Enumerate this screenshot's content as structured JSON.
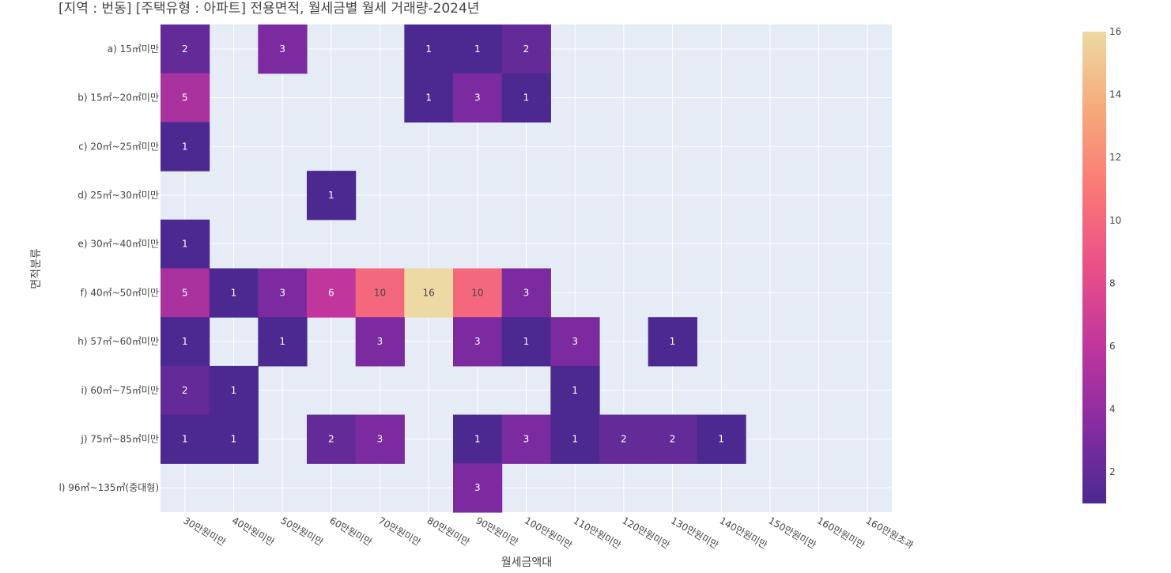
{
  "chart_data": {
    "type": "heatmap",
    "title": "[지역 : 번동] [주택유형 : 아파트] 전용면적, 월세금별 월세 거래량-2024년",
    "xlabel": "월세금액대",
    "ylabel": "면적분류",
    "x_categories": [
      "30만원미만",
      "40만원미만",
      "50만원미만",
      "60만원미만",
      "70만원미만",
      "80만원미만",
      "90만원미만",
      "100만원미만",
      "110만원미만",
      "120만원미만",
      "130만원미만",
      "140만원미만",
      "150만원미만",
      "160만원미만",
      "160만원초과"
    ],
    "y_categories": [
      "a) 15㎡미만",
      "b) 15㎡~20㎡미만",
      "c) 20㎡~25㎡미만",
      "d) 25㎡~30㎡미만",
      "e) 30㎡~40㎡미만",
      "f) 40㎡~50㎡미만",
      "h) 57㎡~60㎡미만",
      "i) 60㎡~75㎡미만",
      "j) 75㎡~85㎡미만",
      "l) 96㎡~135㎡(중대형)"
    ],
    "values": [
      [
        2,
        null,
        3,
        null,
        null,
        1,
        1,
        2,
        null,
        null,
        null,
        null,
        null,
        null,
        null
      ],
      [
        5,
        null,
        null,
        null,
        null,
        1,
        3,
        1,
        null,
        null,
        null,
        null,
        null,
        null,
        null
      ],
      [
        1,
        null,
        null,
        null,
        null,
        null,
        null,
        null,
        null,
        null,
        null,
        null,
        null,
        null,
        null
      ],
      [
        null,
        null,
        null,
        1,
        null,
        null,
        null,
        null,
        null,
        null,
        null,
        null,
        null,
        null,
        null
      ],
      [
        1,
        null,
        null,
        null,
        null,
        null,
        null,
        null,
        null,
        null,
        null,
        null,
        null,
        null,
        null
      ],
      [
        5,
        1,
        3,
        6,
        10,
        16,
        10,
        3,
        null,
        null,
        null,
        null,
        null,
        null,
        null
      ],
      [
        1,
        null,
        1,
        null,
        3,
        null,
        3,
        1,
        3,
        null,
        1,
        null,
        null,
        null,
        null
      ],
      [
        2,
        1,
        null,
        null,
        null,
        null,
        null,
        null,
        1,
        null,
        null,
        null,
        null,
        null,
        null
      ],
      [
        1,
        1,
        null,
        2,
        3,
        null,
        1,
        3,
        1,
        2,
        2,
        1,
        null,
        null,
        null
      ],
      [
        null,
        null,
        null,
        null,
        null,
        null,
        3,
        null,
        null,
        null,
        null,
        null,
        null,
        null,
        null
      ]
    ],
    "zrange": [
      1,
      16
    ],
    "colorbar_ticks": [
      2,
      4,
      6,
      8,
      10,
      12,
      14,
      16
    ],
    "colorscale": "Plotly3 / Agsunset",
    "colors": {
      "plot_bg": "#e5ecf6",
      "grid": "#ffffff",
      "scale_stops": [
        "#4b2991",
        "#872ca2",
        "#c0369d",
        "#ea4f88",
        "#fa7876",
        "#f6a97a",
        "#edd9a3"
      ]
    },
    "grid": true,
    "legend": "colorbar-right"
  }
}
